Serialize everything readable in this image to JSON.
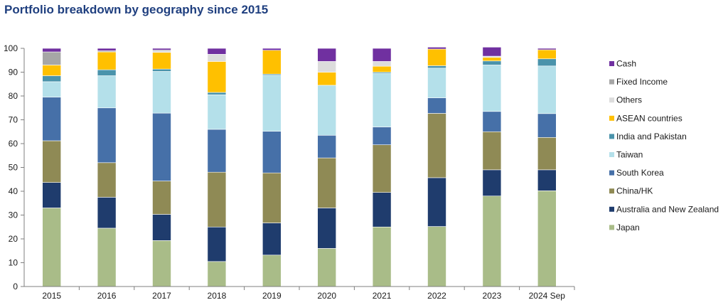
{
  "chart_data": {
    "type": "bar",
    "stacked": true,
    "title": "Portfolio breakdown by geography since 2015",
    "xlabel": "",
    "ylabel": "",
    "ylim": [
      0,
      100
    ],
    "yticks": [
      0,
      10,
      20,
      30,
      40,
      50,
      60,
      70,
      80,
      90,
      100
    ],
    "categories": [
      "2015",
      "2016",
      "2017",
      "2018",
      "2019",
      "2020",
      "2021",
      "2022",
      "2023",
      "2024 Sep"
    ],
    "legend_position": "right",
    "series": [
      {
        "name": "Japan",
        "color": "#a9bc88",
        "values": [
          33,
          24.5,
          19.3,
          10.5,
          13.2,
          16,
          25,
          25.2,
          38,
          40.2
        ]
      },
      {
        "name": "Australia and New Zealand",
        "color": "#1f3c6d",
        "values": [
          10.7,
          13,
          11,
          14.5,
          13.5,
          17,
          14.5,
          20.5,
          11,
          8.8
        ]
      },
      {
        "name": "China/HK",
        "color": "#8f8a55",
        "values": [
          17.5,
          14.5,
          14,
          23,
          21,
          21,
          20,
          27,
          16,
          13.6
        ]
      },
      {
        "name": "South Korea",
        "color": "#4670a8",
        "values": [
          18.3,
          23,
          28.5,
          18,
          17.5,
          9.5,
          7.5,
          6.5,
          8.5,
          10
        ]
      },
      {
        "name": "Taiwan",
        "color": "#b4e0ea",
        "values": [
          6.5,
          13.5,
          17.5,
          14.5,
          23.5,
          21,
          22.5,
          12.5,
          19.5,
          20
        ]
      },
      {
        "name": "India and Pakistan",
        "color": "#4a93ab",
        "values": [
          2.5,
          2.5,
          1,
          1,
          0.5,
          0,
          0.5,
          1,
          1.7,
          3
        ]
      },
      {
        "name": "ASEAN countries",
        "color": "#ffc000",
        "values": [
          4.5,
          7.5,
          7,
          13,
          10,
          5.5,
          2.5,
          7,
          1.5,
          3.8
        ]
      },
      {
        "name": "Others",
        "color": "#dcdcdc",
        "values": [
          0,
          0,
          0.5,
          3,
          0,
          4.5,
          2,
          0,
          0.5,
          0
        ]
      },
      {
        "name": "Fixed Income",
        "color": "#a6a6a6",
        "values": [
          5.5,
          0.5,
          0.5,
          0,
          0,
          0,
          0,
          0,
          0,
          0
        ]
      },
      {
        "name": "Cash",
        "color": "#7030a0",
        "values": [
          1.5,
          1,
          0.7,
          2.5,
          0.8,
          5.5,
          5.5,
          0.8,
          3.8,
          0.6
        ]
      }
    ]
  }
}
